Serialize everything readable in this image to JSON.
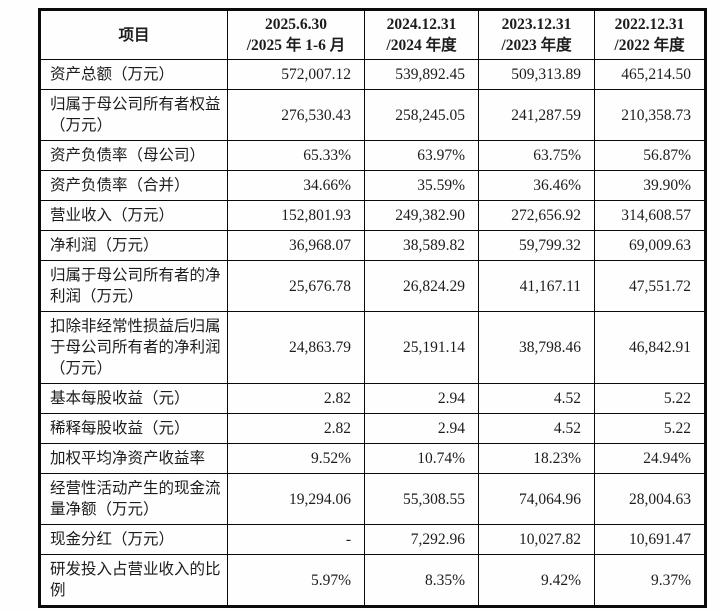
{
  "table": {
    "header": {
      "item": "项目",
      "periods": [
        "2025.6.30\n/2025 年 1-6 月",
        "2024.12.31\n/2024 年度",
        "2023.12.31\n/2023 年度",
        "2022.12.31\n/2022 年度"
      ]
    },
    "rows": [
      {
        "item": "资产总额（万元）",
        "values": [
          "572,007.12",
          "539,892.45",
          "509,313.89",
          "465,214.50"
        ]
      },
      {
        "item": "归属于母公司所有者权益（万元）",
        "values": [
          "276,530.43",
          "258,245.05",
          "241,287.59",
          "210,358.73"
        ]
      },
      {
        "item": "资产负债率（母公司）",
        "values": [
          "65.33%",
          "63.97%",
          "63.75%",
          "56.87%"
        ]
      },
      {
        "item": "资产负债率（合并）",
        "values": [
          "34.66%",
          "35.59%",
          "36.46%",
          "39.90%"
        ]
      },
      {
        "item": "营业收入（万元）",
        "values": [
          "152,801.93",
          "249,382.90",
          "272,656.92",
          "314,608.57"
        ]
      },
      {
        "item": "净利润（万元）",
        "values": [
          "36,968.07",
          "38,589.82",
          "59,799.32",
          "69,009.63"
        ]
      },
      {
        "item": "归属于母公司所有者的净利润（万元）",
        "values": [
          "25,676.78",
          "26,824.29",
          "41,167.11",
          "47,551.72"
        ]
      },
      {
        "item": "扣除非经常性损益后归属于母公司所有者的净利润（万元）",
        "values": [
          "24,863.79",
          "25,191.14",
          "38,798.46",
          "46,842.91"
        ]
      },
      {
        "item": "基本每股收益（元）",
        "values": [
          "2.82",
          "2.94",
          "4.52",
          "5.22"
        ]
      },
      {
        "item": "稀释每股收益（元）",
        "values": [
          "2.82",
          "2.94",
          "4.52",
          "5.22"
        ]
      },
      {
        "item": "加权平均净资产收益率",
        "values": [
          "9.52%",
          "10.74%",
          "18.23%",
          "24.94%"
        ]
      },
      {
        "item": "经营性活动产生的现金流量净额（万元）",
        "values": [
          "19,294.06",
          "55,308.55",
          "74,064.96",
          "28,004.63"
        ]
      },
      {
        "item": "现金分红（万元）",
        "values": [
          "-",
          "7,292.96",
          "10,027.82",
          "10,691.47"
        ]
      },
      {
        "item": "研发投入占营业收入的比例",
        "values": [
          "5.97%",
          "8.35%",
          "9.42%",
          "9.37%"
        ]
      }
    ],
    "colors": {
      "border": "#0a0a0a",
      "text": "#1c1c1c",
      "background": "#fefefe"
    }
  }
}
